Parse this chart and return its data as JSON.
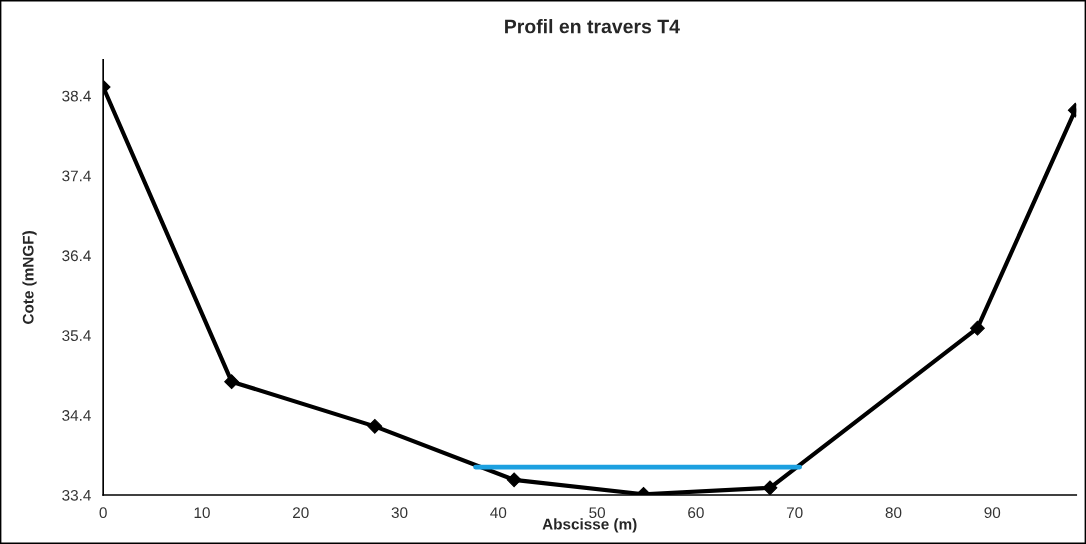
{
  "chart_data": {
    "type": "line",
    "title": "Profil en travers T4",
    "xlabel": "Abscisse (m)",
    "ylabel": "Cote (mNGF)",
    "series": [
      {
        "color": "#000000",
        "marker": "diamond",
        "x": [
          0,
          13,
          27.5,
          41.6,
          54.7,
          67.5,
          88.5,
          98.4
        ],
        "values": [
          38.51,
          34.82,
          34.26,
          33.59,
          33.41,
          33.49,
          35.49,
          38.22
        ]
      },
      {
        "color": "#1ca0e0",
        "marker": "none",
        "x": [
          37.7,
          70.5
        ],
        "values": [
          33.75,
          33.75
        ]
      }
    ],
    "xlim": [
      0,
      98.5
    ],
    "ylim": [
      33.4,
      38.85
    ],
    "xticks": [
      0,
      10,
      20,
      30,
      40,
      50,
      60,
      70,
      80,
      90
    ],
    "yticks": [
      33.4,
      34.4,
      35.4,
      36.4,
      37.4,
      38.4
    ],
    "grid": false,
    "legend": false
  }
}
